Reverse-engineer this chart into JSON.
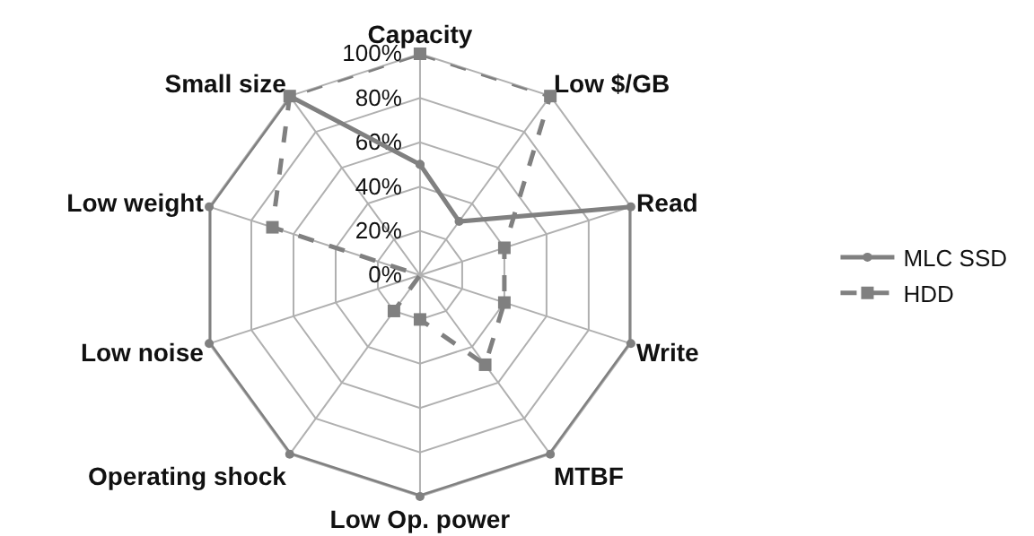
{
  "chart_data": {
    "type": "radar",
    "categories": [
      "Capacity",
      "Low $/GB",
      "Read",
      "Write",
      "MTBF",
      "Low Op. power",
      "Operating shock",
      "Low noise",
      "Low weight",
      "Small size"
    ],
    "series": [
      {
        "name": "MLC SSD",
        "color": "#808080",
        "line_style": "solid",
        "marker": "circle",
        "values": [
          50,
          30,
          100,
          100,
          100,
          100,
          100,
          100,
          100,
          100
        ]
      },
      {
        "name": "HDD",
        "color": "#808080",
        "line_style": "dashed",
        "marker": "square",
        "values": [
          100,
          100,
          40,
          40,
          50,
          20,
          20,
          0,
          70,
          100
        ]
      }
    ],
    "ylim": [
      0,
      100
    ],
    "yticks": [
      {
        "value": 0,
        "label": "0%"
      },
      {
        "value": 20,
        "label": "20%"
      },
      {
        "value": 40,
        "label": "40%"
      },
      {
        "value": 60,
        "label": "60%"
      },
      {
        "value": 80,
        "label": "80%"
      },
      {
        "value": 100,
        "label": "100%"
      }
    ],
    "grid": true,
    "legend": "right"
  }
}
